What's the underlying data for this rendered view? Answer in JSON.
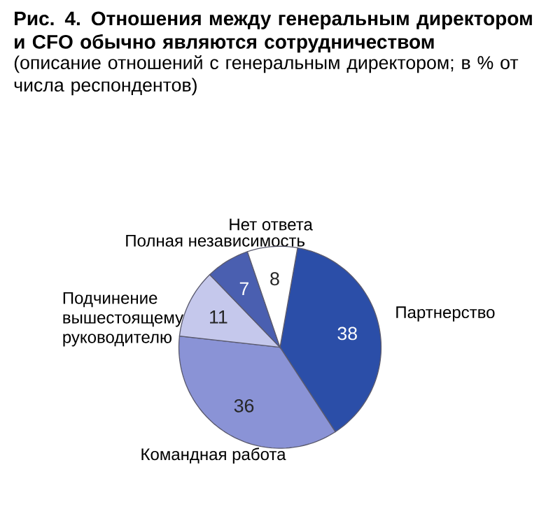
{
  "chart_data": {
    "type": "pie",
    "title": "Рис. 4. Отношения между генеральным директором и CFO обычно являются сотрудничеством",
    "subtitle": "(описание отношений с генеральным директором; в % от числа респондентов)",
    "categories": [
      "Партнерство",
      "Командная работа",
      "Подчинение вышестоящему руководителю",
      "Полная независимость",
      "Нет ответа"
    ],
    "values": [
      38,
      36,
      11,
      7,
      8
    ],
    "colors": [
      "#2b4ea8",
      "#8a93d6",
      "#c5c8ec",
      "#4a5fb0",
      "#ffffff"
    ],
    "data_labels": true
  }
}
